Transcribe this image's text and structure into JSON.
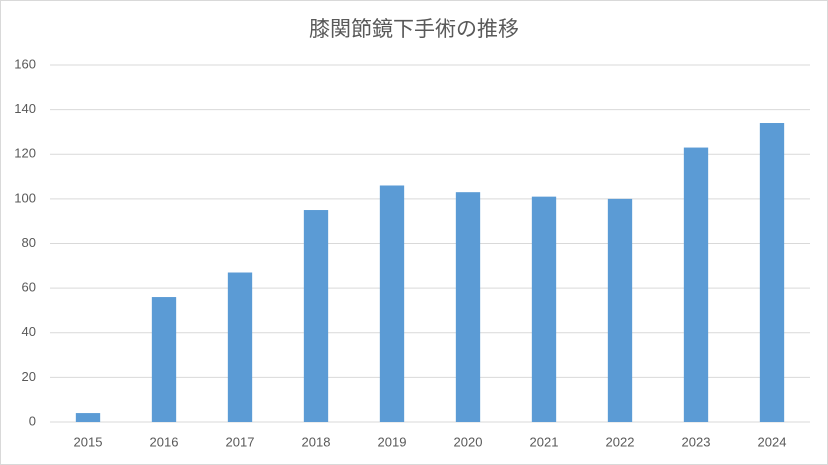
{
  "chart_data": {
    "type": "bar",
    "title": "膝関節鏡下手術の推移",
    "categories": [
      "2015",
      "2016",
      "2017",
      "2018",
      "2019",
      "2020",
      "2021",
      "2022",
      "2023",
      "2024"
    ],
    "values": [
      4,
      56,
      67,
      95,
      106,
      103,
      101,
      100,
      123,
      134
    ],
    "color": "#5b9bd5",
    "ylim": [
      0,
      160
    ],
    "yticks": [
      0,
      20,
      40,
      60,
      80,
      100,
      120,
      140,
      160
    ],
    "grid": true
  }
}
